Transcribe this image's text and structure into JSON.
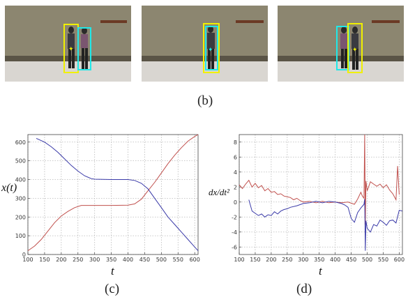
{
  "labels": {
    "b": "(b)",
    "c": "(c)",
    "d": "(d)"
  },
  "frames": [
    {
      "boxes": [
        {
          "color": "yellow"
        },
        {
          "color": "cyan"
        }
      ]
    },
    {
      "boxes": [
        {
          "color": "yellow"
        },
        {
          "color": "cyan"
        }
      ]
    },
    {
      "boxes": [
        {
          "color": "cyan"
        },
        {
          "color": "yellow"
        }
      ]
    }
  ],
  "colors": {
    "yellow": "#f0f000",
    "cyan": "#20e8e8",
    "red": "#c0504d",
    "blue": "#3a3aa8"
  },
  "chart_data": [
    {
      "type": "line",
      "ylabel": "x(t)",
      "xlabel": "t",
      "xlim": [
        100,
        610
      ],
      "ylim": [
        0,
        640
      ],
      "xticks": [
        100,
        150,
        200,
        250,
        300,
        350,
        400,
        450,
        500,
        550,
        600
      ],
      "yticks": [
        0,
        100,
        200,
        300,
        400,
        500,
        600
      ],
      "grid": true,
      "series": [
        {
          "color": "#c0504d",
          "x": [
            100,
            120,
            140,
            160,
            180,
            200,
            220,
            240,
            260,
            300,
            350,
            400,
            420,
            440,
            460,
            480,
            500,
            520,
            540,
            560,
            580,
            600,
            610
          ],
          "y": [
            20,
            45,
            80,
            125,
            170,
            205,
            230,
            250,
            262,
            262,
            262,
            263,
            270,
            295,
            340,
            385,
            435,
            485,
            530,
            570,
            605,
            630,
            640
          ]
        },
        {
          "color": "#3a3aa8",
          "x": [
            125,
            150,
            170,
            190,
            210,
            230,
            250,
            270,
            290,
            300,
            350,
            400,
            420,
            440,
            460,
            480,
            500,
            520,
            540,
            560,
            580,
            600,
            610
          ],
          "y": [
            620,
            600,
            575,
            545,
            510,
            475,
            445,
            420,
            405,
            402,
            400,
            400,
            395,
            380,
            350,
            300,
            250,
            200,
            160,
            120,
            80,
            40,
            20
          ]
        }
      ]
    },
    {
      "type": "line",
      "ylabel": "dx/dt²",
      "xlabel": "t",
      "xlim": [
        100,
        610
      ],
      "ylim": [
        -7,
        9
      ],
      "xticks": [
        100,
        150,
        200,
        250,
        300,
        350,
        400,
        450,
        500,
        550,
        600
      ],
      "yticks": [
        -6,
        -4,
        -2,
        0,
        2,
        4,
        6,
        8
      ],
      "grid": true,
      "series": [
        {
          "color": "#c0504d",
          "x": [
            100,
            110,
            120,
            130,
            140,
            150,
            160,
            170,
            180,
            190,
            200,
            210,
            220,
            230,
            240,
            250,
            260,
            270,
            280,
            290,
            300,
            320,
            340,
            360,
            380,
            400,
            420,
            440,
            460,
            470,
            480,
            485,
            490,
            492,
            494,
            496,
            500,
            510,
            520,
            530,
            540,
            550,
            560,
            570,
            580,
            590,
            595,
            600
          ],
          "y": [
            2.3,
            1.8,
            2.4,
            2.9,
            2.0,
            2.5,
            1.9,
            2.2,
            1.5,
            1.8,
            1.3,
            1.4,
            1.0,
            1.1,
            0.8,
            0.7,
            0.6,
            0.3,
            0.5,
            0.2,
            0.0,
            0.1,
            -0.1,
            0.1,
            -0.1,
            0.0,
            -0.1,
            0.0,
            -0.3,
            0.4,
            1.3,
            0.8,
            0.5,
            9.0,
            -3.0,
            2.8,
            1.5,
            2.7,
            2.4,
            2.1,
            2.4,
            1.9,
            2.3,
            1.6,
            1.1,
            0.3,
            4.8,
            1.0
          ]
        },
        {
          "color": "#3a3aa8",
          "x": [
            130,
            140,
            150,
            160,
            170,
            180,
            190,
            200,
            210,
            220,
            230,
            240,
            250,
            260,
            280,
            300,
            320,
            340,
            360,
            380,
            400,
            420,
            430,
            440,
            450,
            460,
            470,
            480,
            490,
            492,
            494,
            496,
            500,
            510,
            520,
            530,
            540,
            550,
            560,
            570,
            580,
            590,
            600,
            610
          ],
          "y": [
            0.3,
            -1.2,
            -1.5,
            -1.8,
            -1.6,
            -2.0,
            -1.7,
            -1.8,
            -1.3,
            -1.6,
            -1.2,
            -1.0,
            -0.9,
            -0.7,
            -0.5,
            -0.2,
            -0.1,
            0.1,
            -0.1,
            0.1,
            0.0,
            -0.2,
            -0.4,
            -0.7,
            -2.2,
            -2.7,
            -1.4,
            -0.8,
            -0.3,
            0.4,
            -6.5,
            -2.5,
            -3.5,
            -4.0,
            -3.0,
            -3.2,
            -2.4,
            -2.7,
            -3.1,
            -2.5,
            -2.4,
            -2.8,
            -1.1,
            -1.2
          ]
        }
      ]
    }
  ]
}
